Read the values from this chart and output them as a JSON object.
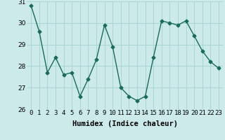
{
  "x": [
    0,
    1,
    2,
    3,
    4,
    5,
    6,
    7,
    8,
    9,
    10,
    11,
    12,
    13,
    14,
    15,
    16,
    17,
    18,
    19,
    20,
    21,
    22,
    23
  ],
  "y": [
    30.8,
    29.6,
    27.7,
    28.4,
    27.6,
    27.7,
    26.6,
    27.4,
    28.3,
    29.9,
    28.9,
    27.0,
    26.6,
    26.4,
    26.6,
    28.4,
    30.1,
    30.0,
    29.9,
    30.1,
    29.4,
    28.7,
    28.2,
    27.9
  ],
  "line_color": "#1a6b5a",
  "marker": "D",
  "marker_size": 2.5,
  "bg_color": "#cceaea",
  "grid_color": "#aad4d4",
  "xlabel": "Humidex (Indice chaleur)",
  "ylim": [
    26,
    31
  ],
  "xlim": [
    -0.5,
    23.5
  ],
  "yticks": [
    26,
    27,
    28,
    29,
    30,
    31
  ],
  "xlabel_fontsize": 7.5,
  "tick_fontsize": 6.5,
  "linewidth": 1.0
}
